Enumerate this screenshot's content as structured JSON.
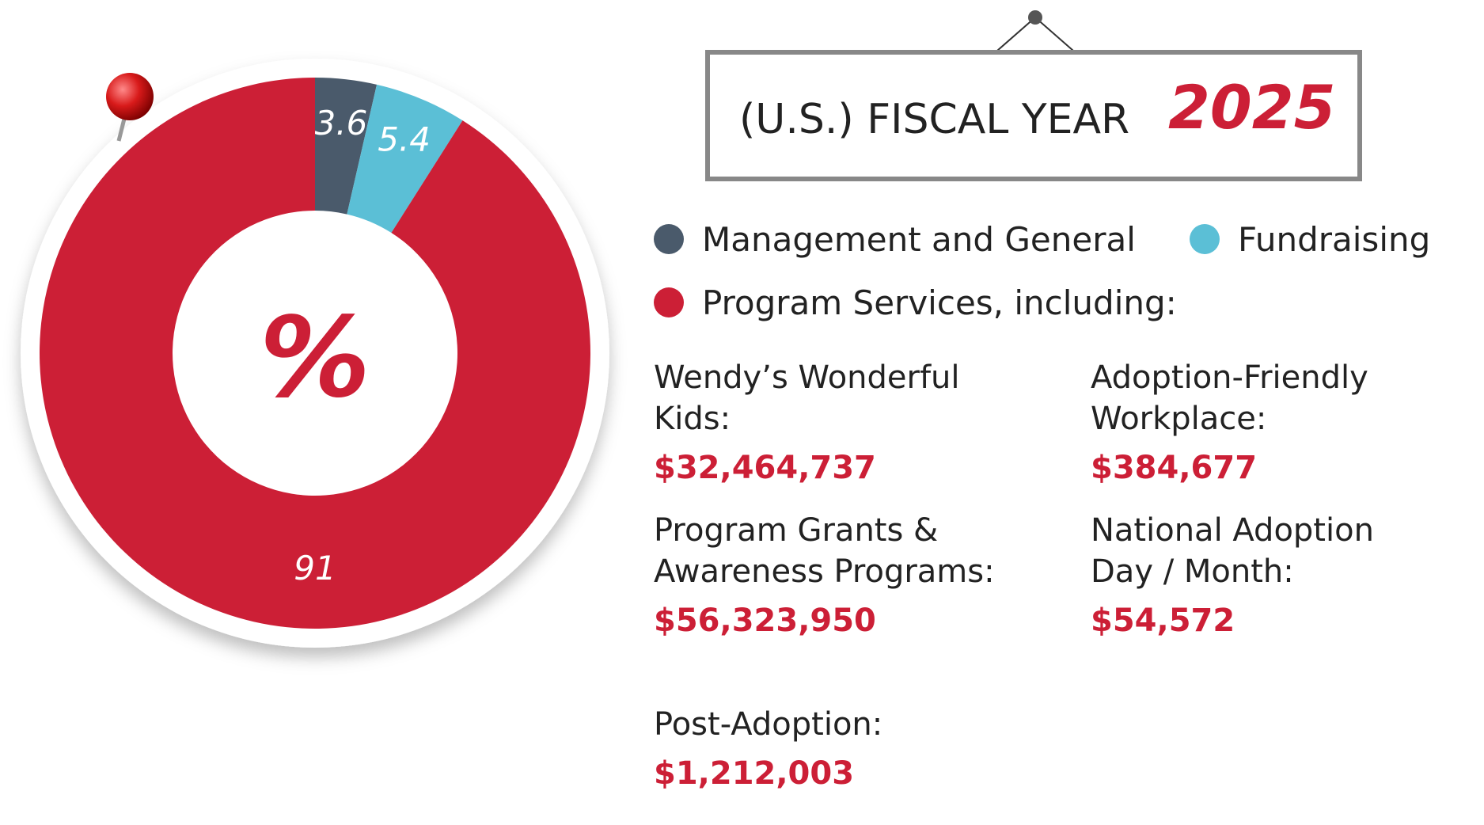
{
  "header": {
    "title": "(U.S.) FISCAL YEAR",
    "year": "2025"
  },
  "chart_data": {
    "type": "donut",
    "center_label": "%",
    "categories": [
      "Management and General",
      "Fundraising",
      "Program Services, including:"
    ],
    "values": [
      3.6,
      5.4,
      91
    ],
    "colors": [
      "#4a5a6b",
      "#5bbfd6",
      "#cc1f36"
    ]
  },
  "program_breakdown": [
    {
      "label_lines": [
        "Wendy’s Wonderful",
        "Kids:"
      ],
      "amount": "$32,464,737"
    },
    {
      "label_lines": [
        "Adoption-Friendly",
        "Workplace:"
      ],
      "amount": "$384,677"
    },
    {
      "label_lines": [
        "Program Grants &",
        "Awareness Programs:"
      ],
      "amount": "$56,323,950"
    },
    {
      "label_lines": [
        "National Adoption",
        "Day / Month:"
      ],
      "amount": "$54,572"
    },
    {
      "label_lines": [
        "Post-Adoption:"
      ],
      "amount": "$1,212,003"
    }
  ]
}
